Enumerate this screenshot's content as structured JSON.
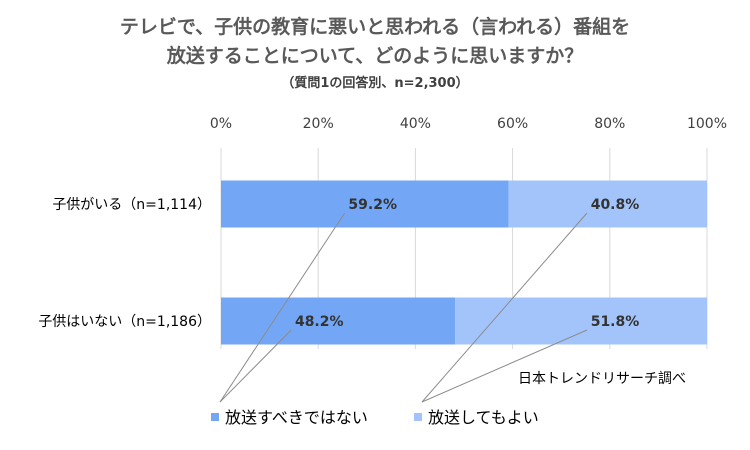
{
  "title_line1": "テレビで、子供の教育に悪いと思われる（言われる）番組を",
  "title_line2": "放送することについて、どのように思いますか？",
  "subtitle": "（質問1の回答別、n=2,300）",
  "source": "日本トレンドリサーチ調べ",
  "colors": {
    "series1": "#73A6F5",
    "series2": "#A3C4FA",
    "grid": "#D9D9D9",
    "leader": "#8C8C8C",
    "text": "#404040"
  },
  "chart_data": {
    "type": "bar",
    "orientation": "horizontal",
    "stacked": true,
    "categories": [
      "子供がいる（n=1,114）",
      "子供はいない（n=1,186）"
    ],
    "series": [
      {
        "name": "放送すべきではない",
        "values": [
          59.2,
          48.2
        ],
        "labels": [
          "59.2%",
          "48.2%"
        ]
      },
      {
        "name": "放送してもよい",
        "values": [
          40.8,
          51.8
        ],
        "labels": [
          "40.8%",
          "51.8%"
        ]
      }
    ],
    "x_ticks": [
      "0%",
      "20%",
      "40%",
      "60%",
      "80%",
      "100%"
    ],
    "xlim": [
      0,
      100
    ],
    "grid": true,
    "legend_position": "bottom-left"
  }
}
